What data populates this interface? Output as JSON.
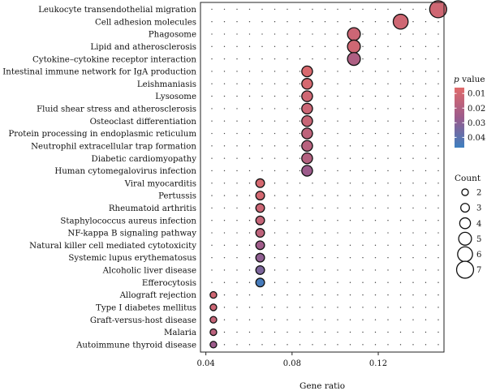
{
  "chart_data": {
    "type": "scatter",
    "xlabel": "Gene ratio",
    "x_ticks": [
      "0.04",
      "0.08",
      "0.12"
    ],
    "x_tick_values": [
      0.04,
      0.08,
      0.12
    ],
    "xlim": [
      0.0375,
      0.1505
    ],
    "terms": [
      {
        "term": "Leukocyte transendothelial migration",
        "gene_ratio": 0.1478,
        "count": 7,
        "p_value": 0.011
      },
      {
        "term": "Cell adhesion molecules",
        "gene_ratio": 0.1304,
        "count": 6,
        "p_value": 0.011
      },
      {
        "term": "Phagosome",
        "gene_ratio": 0.1087,
        "count": 5,
        "p_value": 0.012
      },
      {
        "term": "Lipid and atherosclerosis",
        "gene_ratio": 0.1087,
        "count": 5,
        "p_value": 0.011
      },
      {
        "term": "Cytokine–cytokine receptor interaction",
        "gene_ratio": 0.1087,
        "count": 5,
        "p_value": 0.021
      },
      {
        "term": "Intestinal immune network for IgA production",
        "gene_ratio": 0.087,
        "count": 4,
        "p_value": 0.008
      },
      {
        "term": "Leishmaniasis",
        "gene_ratio": 0.087,
        "count": 4,
        "p_value": 0.009
      },
      {
        "term": "Lysosome",
        "gene_ratio": 0.087,
        "count": 4,
        "p_value": 0.011
      },
      {
        "term": "Fluid shear stress and atherosclerosis",
        "gene_ratio": 0.087,
        "count": 4,
        "p_value": 0.012
      },
      {
        "term": "Osteoclast differentiation",
        "gene_ratio": 0.087,
        "count": 4,
        "p_value": 0.013
      },
      {
        "term": "Protein processing in endoplasmic reticulum",
        "gene_ratio": 0.087,
        "count": 4,
        "p_value": 0.016
      },
      {
        "term": "Neutrophil extracellular trap formation",
        "gene_ratio": 0.087,
        "count": 4,
        "p_value": 0.018
      },
      {
        "term": "Diabetic cardiomyopathy",
        "gene_ratio": 0.087,
        "count": 4,
        "p_value": 0.019
      },
      {
        "term": "Human cytomegalovirus infection",
        "gene_ratio": 0.087,
        "count": 4,
        "p_value": 0.026
      },
      {
        "term": "Viral myocarditis",
        "gene_ratio": 0.0652,
        "count": 3,
        "p_value": 0.009
      },
      {
        "term": "Pertussis",
        "gene_ratio": 0.0652,
        "count": 3,
        "p_value": 0.01
      },
      {
        "term": "Rheumatoid arthritis",
        "gene_ratio": 0.0652,
        "count": 3,
        "p_value": 0.012
      },
      {
        "term": "Staphylococcus aureus infection",
        "gene_ratio": 0.0652,
        "count": 3,
        "p_value": 0.014
      },
      {
        "term": "NF-kappa B signaling pathway",
        "gene_ratio": 0.0652,
        "count": 3,
        "p_value": 0.016
      },
      {
        "term": "Natural killer cell mediated cytotoxicity",
        "gene_ratio": 0.0652,
        "count": 3,
        "p_value": 0.025
      },
      {
        "term": "Systemic lupus erythematosus",
        "gene_ratio": 0.0652,
        "count": 3,
        "p_value": 0.029
      },
      {
        "term": "Alcoholic liver disease",
        "gene_ratio": 0.0652,
        "count": 3,
        "p_value": 0.033
      },
      {
        "term": "Efferocytosis",
        "gene_ratio": 0.0652,
        "count": 3,
        "p_value": 0.045
      },
      {
        "term": "Allograft rejection",
        "gene_ratio": 0.0435,
        "count": 2,
        "p_value": 0.011
      },
      {
        "term": "Type I diabetes mellitus",
        "gene_ratio": 0.0435,
        "count": 2,
        "p_value": 0.012
      },
      {
        "term": "Graft-versus-host disease",
        "gene_ratio": 0.0435,
        "count": 2,
        "p_value": 0.014
      },
      {
        "term": "Malaria",
        "gene_ratio": 0.0435,
        "count": 2,
        "p_value": 0.017
      },
      {
        "term": "Autoimmune thyroid disease",
        "gene_ratio": 0.0435,
        "count": 2,
        "p_value": 0.026
      }
    ],
    "legend_color": {
      "title_italic": "p",
      "title_rest": " value",
      "ticks": [
        "0.01",
        "0.02",
        "0.03",
        "0.04"
      ],
      "tick_values": [
        0.01,
        0.02,
        0.03,
        0.04
      ],
      "range": [
        0.006,
        0.047
      ],
      "color_low_p": "#e06b6b",
      "color_mid": "#9b5b8c",
      "color_high_p": "#3d7fc0"
    },
    "legend_size": {
      "title": "Count",
      "counts": [
        2,
        3,
        4,
        5,
        6,
        7
      ],
      "labels": [
        "2",
        "3",
        "4",
        "5",
        "6",
        "7"
      ]
    },
    "grid": true,
    "legend_position": "right"
  }
}
